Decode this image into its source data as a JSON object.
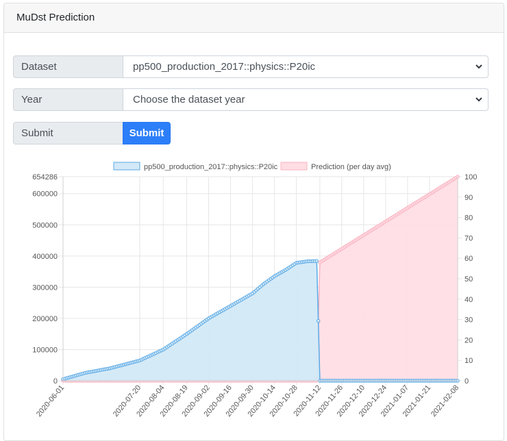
{
  "card": {
    "title": "MuDst Prediction"
  },
  "form": {
    "dataset_label": "Dataset",
    "dataset_value": "pp500_production_2017::physics::P20ic",
    "year_label": "Year",
    "year_value": "Choose the dataset year",
    "submit_label": "Submit",
    "submit_button": "Submit"
  },
  "icons": {
    "select_arrow": "chevron-down-icon"
  },
  "colors": {
    "primary": "#2d7ff9",
    "series_blue_fill": "#d3e9f7",
    "series_blue_line": "#5aa9e6",
    "series_pink_fill": "#ffdde3",
    "series_pink_line": "#f9b3c2"
  },
  "chart_data": {
    "type": "area",
    "legend_position": "top",
    "grid": true,
    "x_tick_labels": [
      "2020-06-01",
      "2020-07-20",
      "2020-08-04",
      "2020-08-19",
      "2020-09-02",
      "2020-09-16",
      "2020-09-30",
      "2020-10-14",
      "2020-10-28",
      "2020-11-12",
      "2020-11-26",
      "2020-12-10",
      "2020-12-24",
      "2021-01-07",
      "2021-01-21",
      "2021-02-08"
    ],
    "y_left": {
      "min": 0,
      "max": 654286,
      "ticks": [
        0,
        100000,
        200000,
        300000,
        400000,
        500000,
        600000,
        654286
      ]
    },
    "y_right": {
      "min": 0,
      "max": 100,
      "ticks": [
        0,
        10,
        20,
        30,
        40,
        50,
        60,
        70,
        80,
        90,
        100
      ]
    },
    "series": [
      {
        "name": "pp500_production_2017::physics::P20ic",
        "axis": "left",
        "x": [
          "2020-06-01",
          "2020-06-15",
          "2020-07-01",
          "2020-07-20",
          "2020-08-04",
          "2020-08-19",
          "2020-09-02",
          "2020-09-16",
          "2020-09-23",
          "2020-09-30",
          "2020-10-07",
          "2020-10-14",
          "2020-10-21",
          "2020-10-28",
          "2020-11-04",
          "2020-11-10",
          "2020-11-12",
          "2021-02-08"
        ],
        "values": [
          5000,
          25000,
          40000,
          65000,
          100000,
          150000,
          200000,
          240000,
          260000,
          280000,
          310000,
          335000,
          355000,
          378000,
          383000,
          384000,
          0,
          0
        ]
      },
      {
        "name": "Prediction (per day avg)",
        "axis": "right",
        "x": [
          "2020-06-01",
          "2020-11-10",
          "2020-11-12",
          "2021-02-08"
        ],
        "values": [
          0,
          0,
          58,
          100
        ]
      }
    ]
  }
}
